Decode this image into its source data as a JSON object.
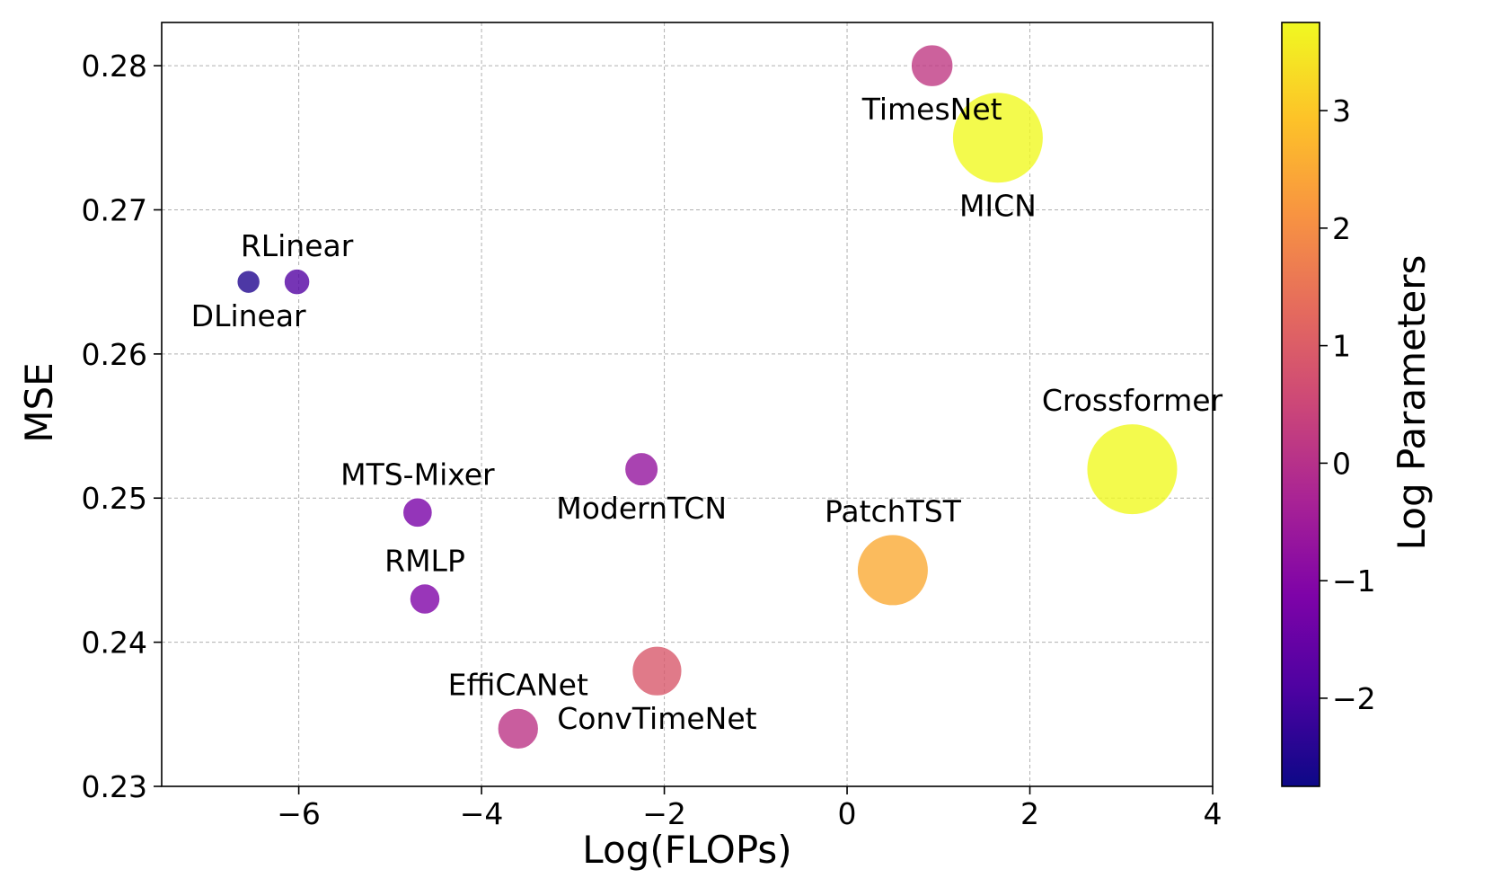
{
  "chart_data": {
    "type": "scatter",
    "title": "",
    "xlabel": "Log(FLOPs)",
    "ylabel": "MSE",
    "xlim": [
      -7.5,
      4
    ],
    "ylim": [
      0.23,
      0.283
    ],
    "xticks": [
      -6,
      -4,
      -2,
      0,
      2,
      4
    ],
    "xtick_labels": [
      "−6",
      "−4",
      "−2",
      "0",
      "2",
      "4"
    ],
    "yticks": [
      0.23,
      0.24,
      0.25,
      0.26,
      0.27,
      0.28
    ],
    "ytick_labels": [
      "0.23",
      "0.24",
      "0.25",
      "0.26",
      "0.27",
      "0.28"
    ],
    "grid": true,
    "size_encoding": "Log Parameters",
    "colorbar": {
      "label": "Log Parameters",
      "colormap": "plasma",
      "range": [
        -2.75,
        3.75
      ],
      "ticks": [
        -2,
        -1,
        0,
        1,
        2,
        3
      ],
      "tick_labels": [
        "−2",
        "−1",
        "0",
        "1",
        "2",
        "3"
      ]
    },
    "points": [
      {
        "name": "DLinear",
        "x": -6.55,
        "y": 0.265,
        "log_params": -2.5,
        "label_pos": "below"
      },
      {
        "name": "RLinear",
        "x": -6.02,
        "y": 0.265,
        "log_params": -1.8,
        "label_pos": "above"
      },
      {
        "name": "MTS-Mixer",
        "x": -4.7,
        "y": 0.249,
        "log_params": -1.2,
        "label_pos": "above"
      },
      {
        "name": "RMLP",
        "x": -4.62,
        "y": 0.243,
        "log_params": -1.1,
        "label_pos": "above"
      },
      {
        "name": "EffiCANet",
        "x": -3.6,
        "y": 0.234,
        "log_params": 0.1,
        "label_pos": "above"
      },
      {
        "name": "ModernTCN",
        "x": -2.25,
        "y": 0.252,
        "log_params": -0.7,
        "label_pos": "below"
      },
      {
        "name": "ConvTimeNet",
        "x": -2.08,
        "y": 0.238,
        "log_params": 0.9,
        "label_pos": "below"
      },
      {
        "name": "PatchTST",
        "x": 0.5,
        "y": 0.245,
        "log_params": 2.5,
        "label_pos": "above"
      },
      {
        "name": "TimesNet",
        "x": 0.93,
        "y": 0.28,
        "log_params": 0.2,
        "label_pos": "below"
      },
      {
        "name": "MICN",
        "x": 1.65,
        "y": 0.275,
        "log_params": 3.75,
        "label_pos": "below"
      },
      {
        "name": "Crossformer",
        "x": 3.12,
        "y": 0.252,
        "log_params": 3.75,
        "label_pos": "above"
      }
    ]
  }
}
